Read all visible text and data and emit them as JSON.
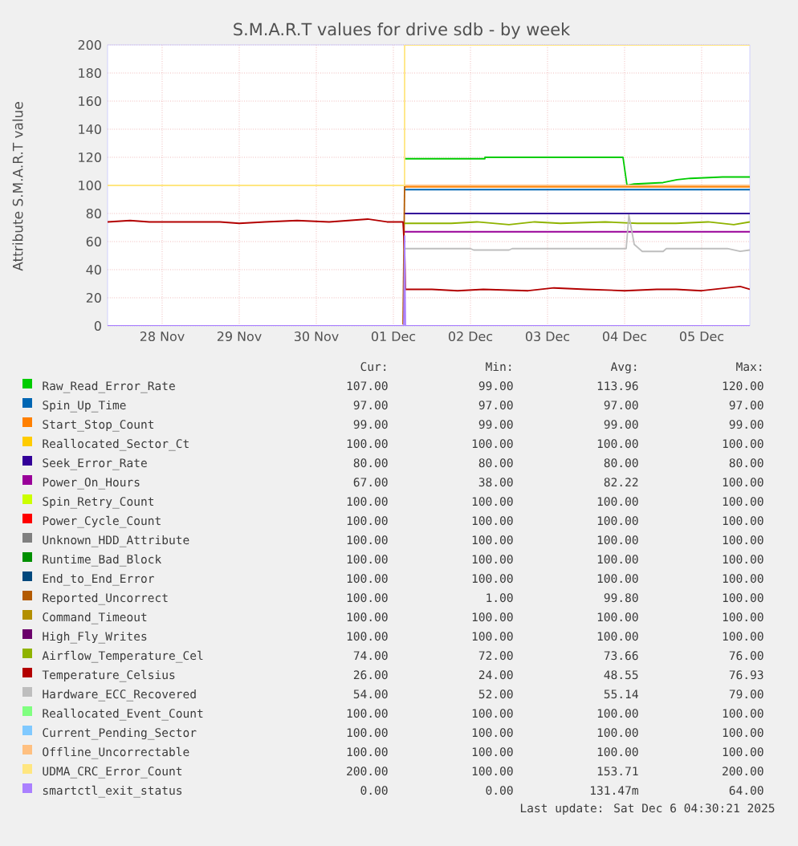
{
  "chart_data": {
    "type": "line",
    "title": "S.M.A.R.T values for drive sdb - by week",
    "ylabel": "Attribute S.M.A.R.T value",
    "xlim": [
      "2025-11-27T19:00",
      "2025-12-06T03:00"
    ],
    "ylim": [
      0,
      200
    ],
    "xticks": [
      {
        "value": "2025-11-28T12:00",
        "label": "28 Nov"
      },
      {
        "value": "2025-11-29T12:00",
        "label": "29 Nov"
      },
      {
        "value": "2025-11-30T12:00",
        "label": "30 Nov"
      },
      {
        "value": "2025-12-01T12:00",
        "label": "01 Dec"
      },
      {
        "value": "2025-12-02T12:00",
        "label": "02 Dec"
      },
      {
        "value": "2025-12-03T12:00",
        "label": "03 Dec"
      },
      {
        "value": "2025-12-04T12:00",
        "label": "04 Dec"
      },
      {
        "value": "2025-12-05T12:00",
        "label": "05 Dec"
      }
    ],
    "yticks": [
      0,
      20,
      40,
      60,
      80,
      100,
      120,
      140,
      160,
      180,
      200
    ],
    "grid": true,
    "legend": "bottom",
    "marker": "none",
    "line_style": "solid",
    "series": [
      {
        "name": "Raw_Read_Error_Rate",
        "color": "#00cc00",
        "x": [
          "2025-12-01T15:30",
          "2025-12-02T16:30",
          "2025-12-02T16:31",
          "2025-12-04T11:30",
          "2025-12-04T12:45",
          "2025-12-04T15:00",
          "2025-12-05T00:00",
          "2025-12-05T04:20",
          "2025-12-05T08:30",
          "2025-12-05T18:30",
          "2025-12-06T03:00"
        ],
        "values": [
          119,
          119,
          120,
          120,
          100,
          101,
          102,
          104,
          105,
          106,
          106
        ]
      },
      {
        "name": "Spin_Up_Time",
        "color": "#0066b3",
        "x": [
          "2025-12-01T15:30",
          "2025-12-06T03:00"
        ],
        "values": [
          97,
          97
        ]
      },
      {
        "name": "Start_Stop_Count",
        "color": "#ff8000",
        "x": [
          "2025-12-01T15:30",
          "2025-12-06T03:00"
        ],
        "values": [
          99,
          99
        ]
      },
      {
        "name": "Reallocated_Sector_Ct",
        "color": "#ffcc00",
        "values": [
          null
        ]
      },
      {
        "name": "Seek_Error_Rate",
        "color": "#330099",
        "x": [
          "2025-12-01T15:30",
          "2025-12-06T03:00"
        ],
        "values": [
          80,
          80
        ]
      },
      {
        "name": "Power_On_Hours",
        "color": "#990099",
        "x": [
          "2025-12-01T15:30",
          "2025-12-06T03:00"
        ],
        "values": [
          67,
          67
        ]
      },
      {
        "name": "Spin_Retry_Count",
        "color": "#ccff00",
        "values": [
          null
        ]
      },
      {
        "name": "Power_Cycle_Count",
        "color": "#ff0000",
        "values": [
          null
        ]
      },
      {
        "name": "Unknown_HDD_Attribute",
        "color": "#808080",
        "values": [
          null
        ]
      },
      {
        "name": "Runtime_Bad_Block",
        "color": "#008f00",
        "values": [
          null
        ]
      },
      {
        "name": "End_to_End_Error",
        "color": "#00487d",
        "values": [
          null
        ]
      },
      {
        "name": "Reported_Uncorrect",
        "color": "#b35a00",
        "x": [
          "2025-12-01T15:00",
          "2025-12-01T15:30"
        ],
        "values": [
          1,
          100
        ]
      },
      {
        "name": "Command_Timeout",
        "color": "#b38f00",
        "values": [
          null
        ]
      },
      {
        "name": "High_Fly_Writes",
        "color": "#6b006b",
        "values": [
          null
        ]
      },
      {
        "name": "Airflow_Temperature_Cel",
        "color": "#8fb300",
        "x": [
          "2025-12-01T15:30",
          "2025-12-02T06:00",
          "2025-12-02T14:00",
          "2025-12-03T00:00",
          "2025-12-03T08:00",
          "2025-12-03T16:00",
          "2025-12-04T06:00",
          "2025-12-04T16:00",
          "2025-12-05T04:00",
          "2025-12-05T14:00",
          "2025-12-05T22:00",
          "2025-12-06T03:00"
        ],
        "values": [
          73,
          73,
          74,
          72,
          74,
          73,
          74,
          73,
          73,
          74,
          72,
          74
        ]
      },
      {
        "name": "Temperature_Celsius",
        "color": "#b30000",
        "x": [
          "2025-11-27T19:00",
          "2025-11-28T02:00",
          "2025-11-28T08:00",
          "2025-11-29T06:00",
          "2025-11-29T12:00",
          "2025-11-29T20:00",
          "2025-11-30T06:00",
          "2025-11-30T16:00",
          "2025-12-01T04:00",
          "2025-12-01T10:00",
          "2025-12-01T15:00",
          "2025-12-01T15:30",
          "2025-12-01T15:45",
          "2025-12-02T00:00",
          "2025-12-02T08:00",
          "2025-12-02T16:00",
          "2025-12-03T06:00",
          "2025-12-03T14:00",
          "2025-12-04T00:00",
          "2025-12-04T12:00",
          "2025-12-04T22:00",
          "2025-12-05T04:00",
          "2025-12-05T12:00",
          "2025-12-05T20:00",
          "2025-12-06T00:00",
          "2025-12-06T03:00"
        ],
        "values": [
          74,
          75,
          74,
          74,
          73,
          74,
          75,
          74,
          76,
          74,
          74,
          53,
          26,
          26,
          25,
          26,
          25,
          27,
          26,
          25,
          26,
          26,
          25,
          27,
          28,
          26
        ]
      },
      {
        "name": "Hardware_ECC_Recovered",
        "color": "#bebebe",
        "x": [
          "2025-12-01T15:30",
          "2025-12-02T12:00",
          "2025-12-02T13:00",
          "2025-12-03T00:00",
          "2025-12-03T01:00",
          "2025-12-04T12:30",
          "2025-12-04T13:20",
          "2025-12-04T15:00",
          "2025-12-04T17:30",
          "2025-12-05T00:00",
          "2025-12-05T01:00",
          "2025-12-05T20:00",
          "2025-12-06T00:00",
          "2025-12-06T03:00"
        ],
        "values": [
          55,
          55,
          54,
          54,
          55,
          55,
          79,
          58,
          53,
          53,
          55,
          55,
          53,
          54
        ]
      },
      {
        "name": "Reallocated_Event_Count",
        "color": "#80ff80",
        "values": [
          null
        ]
      },
      {
        "name": "Current_Pending_Sector",
        "color": "#80c9ff",
        "values": [
          null
        ]
      },
      {
        "name": "Offline_Uncorrectable",
        "color": "#ffc080",
        "x": [
          "2025-12-01T15:30",
          "2025-12-06T03:00"
        ],
        "values": [
          100,
          100
        ]
      },
      {
        "name": "UDMA_CRC_Error_Count",
        "color": "#ffe680",
        "x": [
          "2025-11-27T19:00",
          "2025-12-01T15:29",
          "2025-12-01T15:30",
          "2025-12-06T03:00"
        ],
        "values": [
          100,
          100,
          200,
          200
        ]
      },
      {
        "name": "smartctl_exit_status",
        "color": "#aa80ff",
        "x": [
          "2025-11-27T19:00",
          "2025-12-01T15:15",
          "2025-12-01T15:30",
          "2025-12-01T15:45",
          "2025-12-06T03:00"
        ],
        "values": [
          0,
          0,
          64,
          0,
          0
        ]
      }
    ],
    "annotations": [
      "Cur:",
      "Min:",
      "Avg:",
      "Max:",
      "107.00",
      "99.00",
      "113.96",
      "120.00",
      "97.00",
      "97.00",
      "97.00",
      "97.00",
      "99.00",
      "99.00",
      "99.00",
      "99.00",
      "100.00",
      "100.00",
      "100.00",
      "100.00",
      "80.00",
      "80.00",
      "80.00",
      "80.00",
      "67.00",
      "38.00",
      "82.22",
      "100.00",
      "100.00",
      "100.00",
      "100.00",
      "100.00",
      "100.00",
      "100.00",
      "100.00",
      "100.00",
      "100.00",
      "100.00",
      "100.00",
      "100.00",
      "100.00",
      "100.00",
      "100.00",
      "100.00",
      "100.00",
      "100.00",
      "100.00",
      "100.00",
      "100.00",
      "1.00",
      "99.80",
      "100.00",
      "100.00",
      "100.00",
      "100.00",
      "100.00",
      "100.00",
      "100.00",
      "100.00",
      "100.00",
      "74.00",
      "72.00",
      "73.66",
      "76.00",
      "26.00",
      "24.00",
      "48.55",
      "76.93",
      "54.00",
      "52.00",
      "55.14",
      "79.00",
      "100.00",
      "100.00",
      "100.00",
      "100.00",
      "100.00",
      "100.00",
      "100.00",
      "100.00",
      "100.00",
      "100.00",
      "100.00",
      "100.00",
      "200.00",
      "100.00",
      "153.71",
      "200.00",
      "0.00",
      "0.00",
      "131.47m",
      "64.00",
      "Last update: Sat Dec  6 04:30:21 2025"
    ]
  }
}
